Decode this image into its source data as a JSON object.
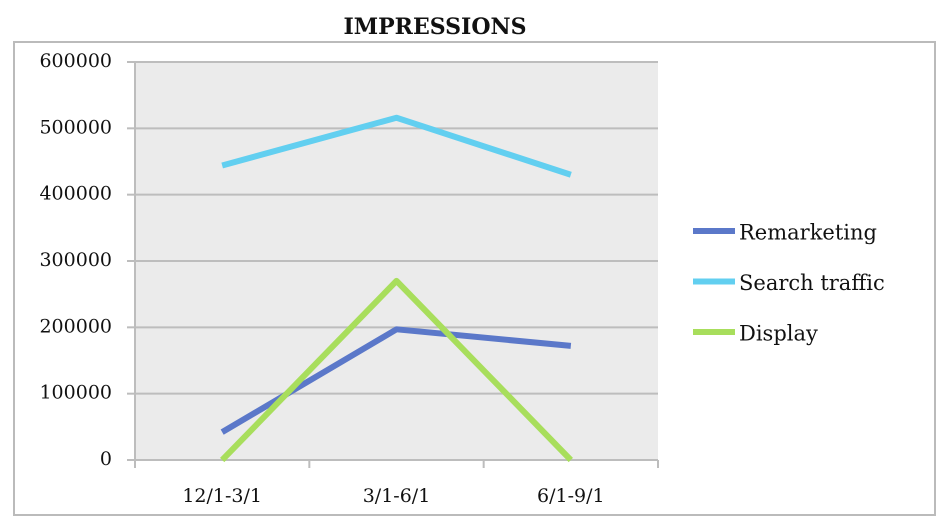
{
  "chart_data": {
    "type": "line",
    "title": "IMPRESSIONS",
    "categories": [
      "12/1-3/1",
      "3/1-6/1",
      "6/1-9/1"
    ],
    "series": [
      {
        "name": "Remarketing",
        "color": "#5b78c9",
        "values": [
          42000,
          197000,
          172000
        ]
      },
      {
        "name": "Search traffic",
        "color": "#62cff0",
        "values": [
          444000,
          516000,
          430000
        ]
      },
      {
        "name": "Display",
        "color": "#a8de5c",
        "values": [
          0,
          270000,
          0
        ]
      }
    ],
    "ylim": [
      0,
      600000
    ],
    "yticks": [
      0,
      100000,
      200000,
      300000,
      400000,
      500000,
      600000
    ],
    "grid": true,
    "legend": "right"
  }
}
